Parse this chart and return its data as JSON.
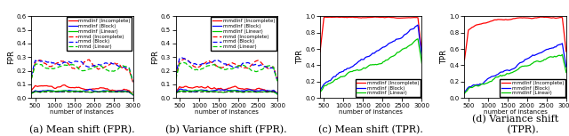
{
  "figsize": [
    6.4,
    1.53
  ],
  "dpi": 100,
  "xlim": [
    400,
    3000
  ],
  "xticks": [
    500,
    1000,
    1500,
    2000,
    2500,
    3000
  ],
  "colors": {
    "mmdInf_incomplete": "#ff0000",
    "mmdInf_block": "#0000ff",
    "mmdInf_linear": "#00cc00",
    "mmd_incomplete": "#ff0000",
    "mmd_block": "#0000ff",
    "mmd_linear": "#00cc00"
  },
  "legend_labels_fpr": [
    "mmdInf (Incomplete)",
    "mmdInf (Block)",
    "mmdInf (Linear)",
    "mmd (Incomplete)",
    "mmd (Block)",
    "mmd (Linear)"
  ],
  "legend_labels_tpr": [
    "mmdInf (Incomplete)",
    "mmdInf (Block)",
    "mmdInf (Linear)"
  ],
  "subtitles": [
    "(a) Mean shift (FPR).",
    "(b) Variance shift (FPR).",
    "(c) Mean shift (TPR).",
    "(d) Variance shift\n     (TPR)."
  ],
  "ylabels": [
    "FPR",
    "FPR",
    "TPR",
    "TPR"
  ],
  "ylims_fpr": [
    0,
    0.6
  ],
  "ylims_tpr": [
    0,
    1.0
  ],
  "yticks_fpr": [
    0,
    0.1,
    0.2,
    0.3,
    0.4,
    0.5,
    0.6
  ],
  "yticks_tpr": [
    0,
    0.2,
    0.4,
    0.6,
    0.8,
    1.0
  ],
  "xlabel": "number of instances",
  "alpha_level": 0.05,
  "background": "#ffffff",
  "tick_fontsize": 5,
  "label_fontsize": 5,
  "legend_fontsize": 4,
  "subtitle_fontsize": 8
}
